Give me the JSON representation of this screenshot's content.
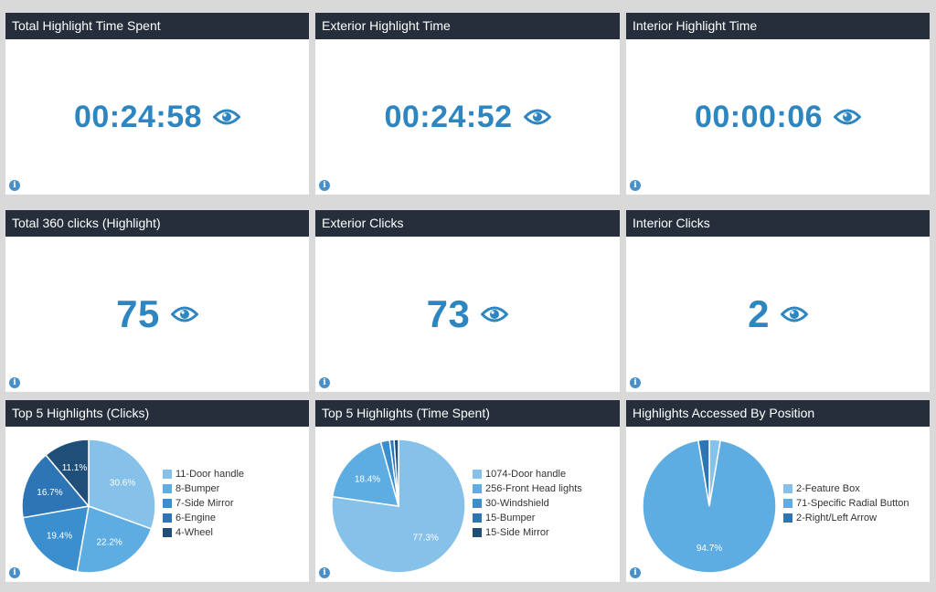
{
  "metrics": [
    {
      "title": "Total Highlight Time Spent",
      "value": "00:24:58"
    },
    {
      "title": "Exterior Highlight Time",
      "value": "00:24:52"
    },
    {
      "title": "Interior Highlight Time",
      "value": "00:00:06"
    },
    {
      "title": "Total 360 clicks (Highlight)",
      "value": "75"
    },
    {
      "title": "Exterior Clicks",
      "value": "73"
    },
    {
      "title": "Interior Clicks",
      "value": "2"
    }
  ],
  "info_icon_glyph": "i",
  "chart_data": [
    {
      "type": "pie",
      "title": "Top 5 Highlights (Clicks)",
      "labels": [
        "11-Door handle",
        "8-Bumper",
        "7-Side Mirror",
        "6-Engine",
        "4-Wheel"
      ],
      "values": [
        11,
        8,
        7,
        6,
        4
      ],
      "slice_labels": [
        "30.6%",
        "22.2%",
        "19.4%",
        "16.7%",
        "11.1%"
      ],
      "colors": [
        "#85c1e9",
        "#5dade2",
        "#3b8fcf",
        "#2e75b6",
        "#1f4e79"
      ],
      "legend": "right"
    },
    {
      "type": "pie",
      "title": "Top 5 Highlights (Time Spent)",
      "labels": [
        "1074-Door handle",
        "256-Front Head lights",
        "30-Windshield",
        "15-Bumper",
        "15-Side Mirror"
      ],
      "values": [
        1074,
        256,
        30,
        15,
        15
      ],
      "slice_labels": [
        "77.3%",
        "18.4%",
        "",
        "",
        ""
      ],
      "colors": [
        "#85c1e9",
        "#5dade2",
        "#3b8fcf",
        "#2e75b6",
        "#1f4e79"
      ],
      "legend": "right"
    },
    {
      "type": "pie",
      "title": "Highlights Accessed By Position",
      "labels": [
        "2-Feature Box",
        "71-Specific Radial Button",
        "2-Right/Left Arrow"
      ],
      "values": [
        2,
        71,
        2
      ],
      "slice_labels": [
        "",
        "94.7%",
        ""
      ],
      "colors": [
        "#85c1e9",
        "#5dade2",
        "#2e75b6"
      ],
      "legend": "right"
    }
  ]
}
